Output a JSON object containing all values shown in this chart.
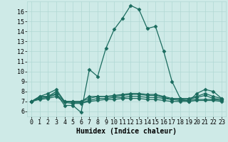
{
  "xlabel": "Humidex (Indice chaleur)",
  "bg_color": "#ceeae7",
  "grid_color": "#b0d8d4",
  "line_color": "#1a6b5e",
  "xlim": [
    -0.5,
    23.5
  ],
  "ylim": [
    5.5,
    17.0
  ],
  "xticks": [
    0,
    1,
    2,
    3,
    4,
    5,
    6,
    7,
    8,
    9,
    10,
    11,
    12,
    13,
    14,
    15,
    16,
    17,
    18,
    19,
    20,
    21,
    22,
    23
  ],
  "yticks": [
    6,
    7,
    8,
    9,
    10,
    11,
    12,
    13,
    14,
    15,
    16
  ],
  "series": {
    "main": [
      7.0,
      7.5,
      7.5,
      7.8,
      6.6,
      6.6,
      5.9,
      10.2,
      9.5,
      12.3,
      14.2,
      15.3,
      16.6,
      16.2,
      14.3,
      14.5,
      12.0,
      9.0,
      7.3,
      7.0,
      7.8,
      8.2,
      8.0,
      7.3
    ],
    "line2": [
      7.0,
      7.5,
      7.8,
      8.2,
      7.0,
      7.0,
      7.0,
      7.5,
      7.5,
      7.5,
      7.6,
      7.7,
      7.8,
      7.8,
      7.7,
      7.7,
      7.5,
      7.3,
      7.3,
      7.3,
      7.5,
      7.8,
      7.5,
      7.3
    ],
    "line3": [
      7.0,
      7.4,
      7.5,
      8.0,
      7.0,
      7.0,
      7.0,
      7.3,
      7.5,
      7.5,
      7.5,
      7.6,
      7.7,
      7.7,
      7.6,
      7.6,
      7.4,
      7.2,
      7.2,
      7.2,
      7.4,
      7.6,
      7.3,
      7.2
    ],
    "line4": [
      7.0,
      7.3,
      7.4,
      7.7,
      7.0,
      6.9,
      6.9,
      7.1,
      7.3,
      7.3,
      7.4,
      7.4,
      7.5,
      7.5,
      7.4,
      7.4,
      7.3,
      7.2,
      7.1,
      7.1,
      7.2,
      7.2,
      7.2,
      7.1
    ],
    "line5": [
      7.0,
      7.2,
      7.3,
      7.5,
      6.9,
      6.8,
      6.8,
      7.0,
      7.1,
      7.2,
      7.2,
      7.3,
      7.3,
      7.3,
      7.2,
      7.2,
      7.1,
      7.0,
      7.0,
      7.0,
      7.1,
      7.1,
      7.1,
      7.0
    ]
  },
  "marker": "D",
  "marker_size": 2.5,
  "linewidth": 0.9,
  "font_size_label": 7,
  "font_size_tick": 6
}
